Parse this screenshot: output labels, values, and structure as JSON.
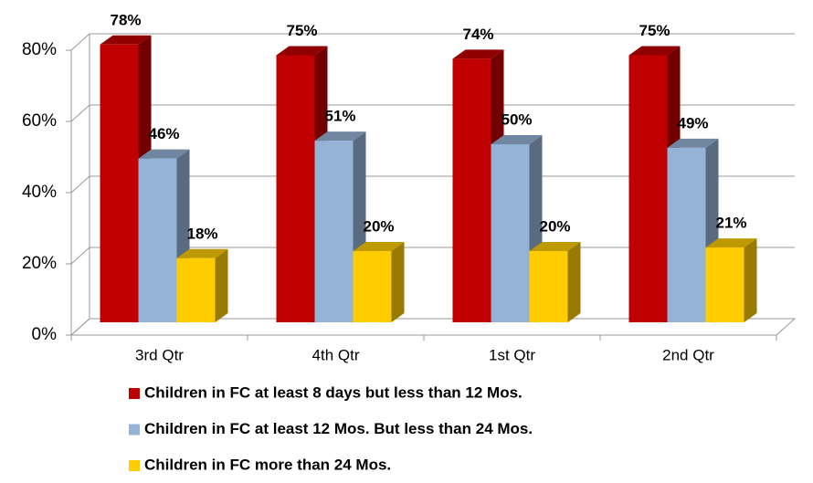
{
  "chart_data": {
    "type": "bar3d",
    "categories": [
      "3rd Qtr",
      "4th Qtr",
      "1st Qtr",
      "2nd Qtr"
    ],
    "series": [
      {
        "name": "Children in FC at least 8 days but less than 12 Mos.",
        "color": "#c00000",
        "values": [
          78,
          75,
          74,
          75
        ],
        "value_labels": [
          "78%",
          "75%",
          "74%",
          "75%"
        ]
      },
      {
        "name": "Children in FC at least 12 Mos. But less than 24 Mos.",
        "color": "#95b3d7",
        "values": [
          46,
          51,
          50,
          49
        ],
        "value_labels": [
          "46%",
          "51%",
          "50%",
          "49%"
        ]
      },
      {
        "name": "Children in FC more than 24 Mos.",
        "color": "#ffcc00",
        "values": [
          18,
          20,
          20,
          21
        ],
        "value_labels": [
          "18%",
          "20%",
          "20%",
          "21%"
        ]
      }
    ],
    "ylim": [
      0,
      80
    ],
    "yticks": [
      {
        "value": 0,
        "label": "0%"
      },
      {
        "value": 20,
        "label": "20%"
      },
      {
        "value": 40,
        "label": "40%"
      },
      {
        "value": 60,
        "label": "60%"
      },
      {
        "value": 80,
        "label": "80%"
      }
    ],
    "grid": true
  }
}
